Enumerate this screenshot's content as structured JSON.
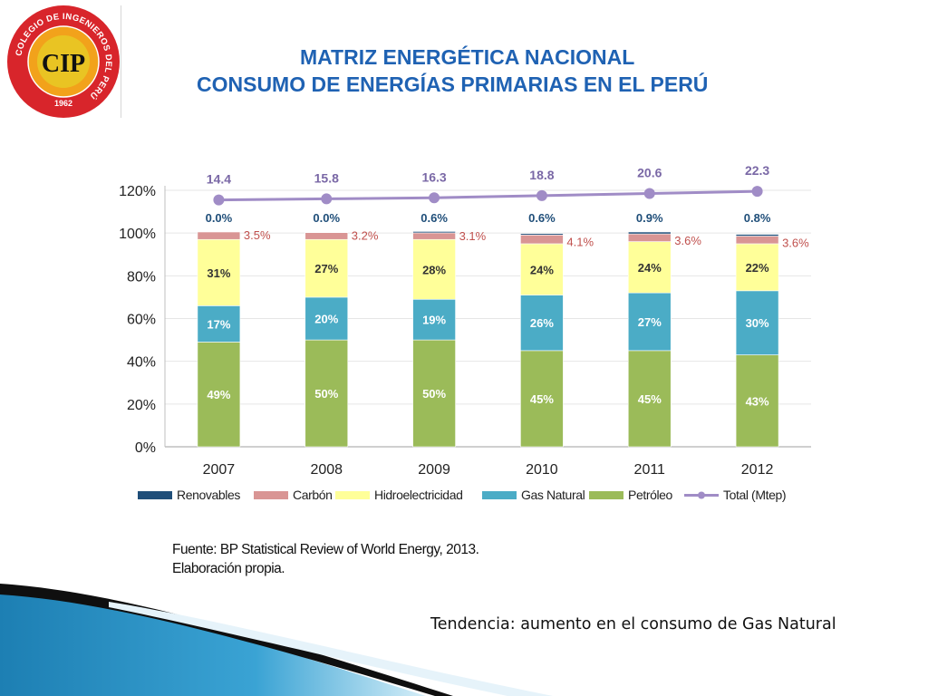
{
  "logo": {
    "ring_text": "COLEGIO DE INGENIEROS DEL PERÚ",
    "year": "1962",
    "monogram": "CIP",
    "colors": {
      "ring": "#d8252b",
      "inner": "#f2a21b",
      "seal": "#e9c423",
      "monogram": "#111111"
    }
  },
  "header": {
    "title_line_1": "MATRIZ ENERGÉTICA NACIONAL",
    "title_line_2": "CONSUMO DE ENERGÍAS PRIMARIAS EN EL PERÚ"
  },
  "chart_data": {
    "type": "bar",
    "stacked": true,
    "categories": [
      "2007",
      "2008",
      "2009",
      "2010",
      "2011",
      "2012"
    ],
    "y_ticks": [
      "0%",
      "20%",
      "40%",
      "60%",
      "80%",
      "100%",
      "120%"
    ],
    "ylim": [
      0,
      120
    ],
    "grid": true,
    "legend_position": "bottom",
    "series": [
      {
        "name": "Petróleo",
        "color": "#9bbb59",
        "values": [
          49,
          50,
          50,
          45,
          45,
          43
        ],
        "labels": [
          "49%",
          "50%",
          "50%",
          "45%",
          "45%",
          "43%"
        ]
      },
      {
        "name": "Gas Natural",
        "color": "#4bacc6",
        "values": [
          17,
          20,
          19,
          26,
          27,
          30
        ],
        "labels": [
          "17%",
          "20%",
          "19%",
          "26%",
          "27%",
          "30%"
        ]
      },
      {
        "name": "Hidroelectricidad",
        "color": "#ffff99",
        "values": [
          31,
          27,
          28,
          24,
          24,
          22
        ],
        "labels": [
          "31%",
          "27%",
          "28%",
          "24%",
          "24%",
          "22%"
        ]
      },
      {
        "name": "Carbón",
        "color": "#d99594",
        "values": [
          3.5,
          3.2,
          3.1,
          4.1,
          3.6,
          3.6
        ],
        "labels": [
          "3.5%",
          "3.2%",
          "3.1%",
          "4.1%",
          "3.6%",
          "3.6%"
        ]
      },
      {
        "name": "Renovables",
        "color": "#1f4e79",
        "values": [
          0.0,
          0.0,
          0.6,
          0.6,
          0.9,
          0.8
        ],
        "labels": [
          "0.0%",
          "0.0%",
          "0.6%",
          "0.6%",
          "0.9%",
          "0.8%"
        ]
      }
    ],
    "total_series": {
      "name": "Total (Mtep)",
      "color": "#a08cc6",
      "values": [
        14.4,
        15.8,
        16.3,
        18.8,
        20.6,
        22.3
      ],
      "labels": [
        "14.4",
        "15.8",
        "16.3",
        "18.8",
        "20.6",
        "22.3"
      ],
      "line_level_pct": [
        115.5,
        116,
        116.5,
        117.5,
        118.5,
        119.5
      ]
    },
    "legend_order": [
      "Renovables",
      "Carbón",
      "Hidroelectricidad",
      "Gas Natural",
      "Petróleo",
      "Total (Mtep)"
    ],
    "label_colors": {
      "renovables": "#1f4e79",
      "carbon": "#c0504d",
      "total": "#7a68a6",
      "inside": "#ffffff",
      "hidro": "#333333"
    }
  },
  "source": {
    "line_1": "Fuente: BP Statistical Review of World Energy, 2013.",
    "line_2": "Elaboración propia."
  },
  "footer": {
    "tendencia": "Tendencia: aumento en el consumo de Gas Natural"
  }
}
